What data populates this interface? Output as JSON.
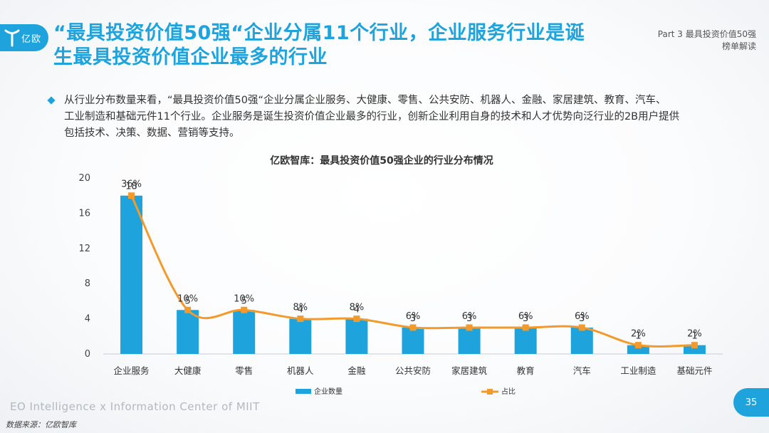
{
  "logo": {
    "text": "亿欧"
  },
  "header": {
    "title_line1": "“最具投资价值50强“企业分属11个行业，企业服务行业是诞",
    "title_line2": "生最具投资价值企业最多的行业",
    "part_line1": "Part 3 最具投资价值50强",
    "part_line2": "榜单解读"
  },
  "body": {
    "line1": "从行业分布数量来看，“最具投资价值50强“企业分属企业服务、大健康、零售、公共安防、机器人、金融、家居建筑、教育、汽车、",
    "line2": "工业制造和基础元件11个行业。企业服务是诞生投资价值企业最多的行业，创新企业利用自身的技术和人才优势向泛行业的2B用户提供",
    "line3": "包括技术、决策、数据、营销等支持。"
  },
  "chart_data": {
    "type": "bar",
    "title": "亿欧智库：最具投资价值50强企业的行业分布情况",
    "categories": [
      "企业服务",
      "大健康",
      "零售",
      "机器人",
      "金融",
      "公共安防",
      "家居建筑",
      "教育",
      "汽车",
      "工业制造",
      "基础元件"
    ],
    "series": [
      {
        "name": "企业数量",
        "type": "bar",
        "values": [
          18,
          5,
          5,
          4,
          4,
          3,
          3,
          3,
          3,
          1,
          1
        ],
        "color": "#1fa3dc"
      },
      {
        "name": "占比",
        "type": "line",
        "values": [
          36,
          10,
          10,
          8,
          8,
          6,
          6,
          6,
          6,
          2,
          2
        ],
        "labels": [
          "36%",
          "10%",
          "10%",
          "8%",
          "8%",
          "6%",
          "6%",
          "6%",
          "6%",
          "2%",
          "2%"
        ],
        "color": "#f39a2c"
      }
    ],
    "yticks": [
      0,
      4,
      8,
      12,
      16,
      20
    ],
    "ylim": [
      0,
      20
    ],
    "legend_position": "bottom",
    "grid": false
  },
  "footer": {
    "english": "EO Intelligence  x  Information Center of MIIT",
    "source": "数据来源：亿欧智库",
    "page": "35"
  }
}
